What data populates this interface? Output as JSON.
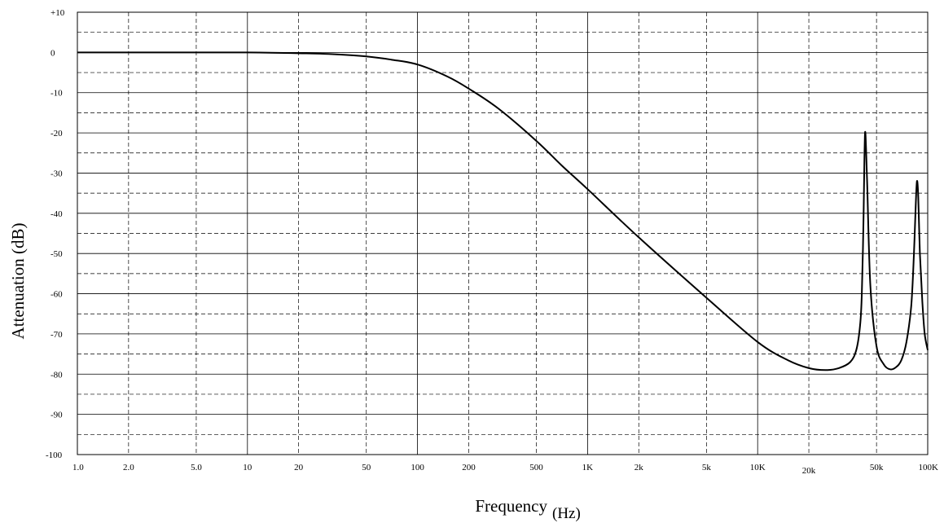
{
  "chart_data": {
    "type": "line",
    "title": "",
    "xlabel": "Frequency",
    "xlabel_unit": "(Hz)",
    "ylabel": "Attenuation (dB)",
    "x_scale": "log",
    "xlim": [
      1,
      100000
    ],
    "ylim": [
      -100,
      10
    ],
    "grid": true,
    "legend": "none",
    "line_color": "#000000",
    "x_ticks": [
      {
        "value": 1,
        "label": "1.0"
      },
      {
        "value": 2,
        "label": "2.0"
      },
      {
        "value": 5,
        "label": "5.0"
      },
      {
        "value": 10,
        "label": "10"
      },
      {
        "value": 20,
        "label": "20"
      },
      {
        "value": 50,
        "label": "50"
      },
      {
        "value": 100,
        "label": "100"
      },
      {
        "value": 200,
        "label": "200"
      },
      {
        "value": 500,
        "label": "500"
      },
      {
        "value": 1000,
        "label": "1K"
      },
      {
        "value": 2000,
        "label": "2k"
      },
      {
        "value": 5000,
        "label": "5k"
      },
      {
        "value": 10000,
        "label": "10K"
      },
      {
        "value": 20000,
        "label": "20k"
      },
      {
        "value": 50000,
        "label": "50k"
      },
      {
        "value": 100000,
        "label": "100K"
      }
    ],
    "y_ticks": [
      {
        "value": 10,
        "label": "+10"
      },
      {
        "value": 0,
        "label": "0"
      },
      {
        "value": -10,
        "label": "-10"
      },
      {
        "value": -20,
        "label": "-20"
      },
      {
        "value": -30,
        "label": "-30"
      },
      {
        "value": -40,
        "label": "-40"
      },
      {
        "value": -50,
        "label": "-50"
      },
      {
        "value": -60,
        "label": "-60"
      },
      {
        "value": -70,
        "label": "-70"
      },
      {
        "value": -80,
        "label": "-80"
      },
      {
        "value": -90,
        "label": "-90"
      },
      {
        "value": -100,
        "label": "-100"
      }
    ],
    "series": [
      {
        "x": [
          1,
          5,
          10,
          20,
          30,
          50,
          70,
          100,
          150,
          200,
          300,
          500,
          700,
          1000,
          2000,
          5000,
          10000,
          15000,
          20000,
          25000,
          30000,
          35000,
          38000,
          40000,
          41000,
          42000,
          42500,
          43000,
          44000,
          46000,
          50000,
          55000,
          60000,
          65000,
          70000,
          75000,
          80000,
          83000,
          85000,
          86500,
          88000,
          90000,
          93000,
          96000,
          100000
        ],
        "y": [
          0,
          0,
          0,
          -0.2,
          -0.4,
          -1,
          -1.8,
          -3,
          -6,
          -9,
          -14,
          -22,
          -28,
          -34,
          -46,
          -61,
          -72,
          -76.5,
          -78.5,
          -79,
          -78.5,
          -77,
          -74,
          -68,
          -60,
          -40,
          -25,
          -20,
          -32,
          -58,
          -73,
          -77.5,
          -78.8,
          -78.3,
          -76.5,
          -72,
          -63,
          -50,
          -38,
          -32,
          -36,
          -50,
          -62,
          -70,
          -74
        ]
      }
    ]
  }
}
